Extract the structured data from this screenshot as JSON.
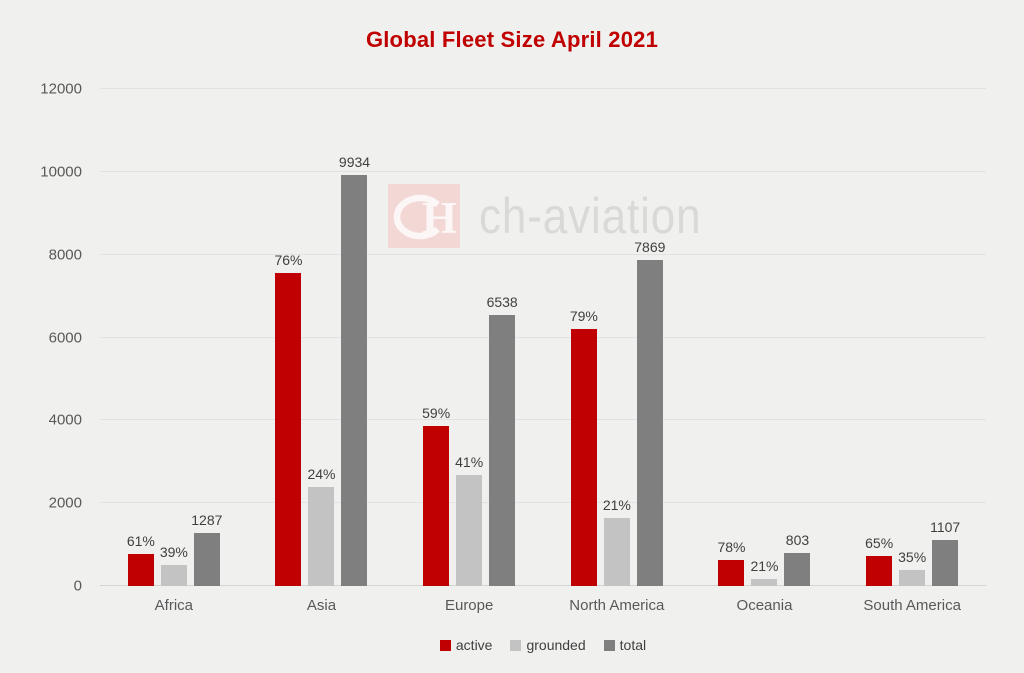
{
  "title": {
    "text": "Global Fleet Size April 2021",
    "color": "#c00000"
  },
  "watermark": {
    "brand": "ch-aviation",
    "logo_icon": "ch-monogram",
    "square_color": "#f2d7d5",
    "glyph_color": "#fcf7f6",
    "text_color": "#d9d9d7"
  },
  "colors": {
    "background": "#f0f0ef",
    "gridline": "#e2e2e2",
    "axis_line": "#d4d4d4",
    "tick_text": "#595959",
    "label_text": "#3f3f3f"
  },
  "chart_data": {
    "type": "bar",
    "title": "Global Fleet Size April 2021",
    "xlabel": "",
    "ylabel": "",
    "categories": [
      "Africa",
      "Asia",
      "Europe",
      "North America",
      "Oceania",
      "South America"
    ],
    "series": [
      {
        "name": "active",
        "color": "#c00000",
        "values": [
          785,
          7550,
          3857,
          6216,
          626,
          720
        ],
        "labels": [
          "61%",
          "76%",
          "59%",
          "79%",
          "78%",
          "65%"
        ]
      },
      {
        "name": "grounded",
        "color": "#c3c3c3",
        "values": [
          502,
          2384,
          2681,
          1652,
          169,
          387
        ],
        "labels": [
          "39%",
          "24%",
          "41%",
          "21%",
          "21%",
          "35%"
        ]
      },
      {
        "name": "total",
        "color": "#7f7f7f",
        "values": [
          1287,
          9934,
          6538,
          7869,
          803,
          1107
        ],
        "labels": [
          "1287",
          "9934",
          "6538",
          "7869",
          "803",
          "1107"
        ]
      }
    ],
    "ylim": [
      0,
      12000
    ],
    "yticks": [
      0,
      2000,
      4000,
      6000,
      8000,
      10000,
      12000
    ],
    "grid": true,
    "legend": [
      "active",
      "grounded",
      "total"
    ],
    "legend_position": "bottom"
  }
}
